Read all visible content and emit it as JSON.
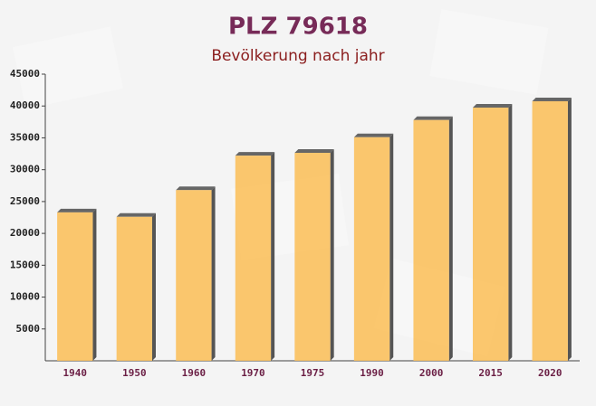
{
  "chart_data": {
    "type": "bar",
    "title": "PLZ 79618",
    "subtitle": "Bevölkerung nach jahr",
    "categories": [
      "1940",
      "1950",
      "1960",
      "1970",
      "1975",
      "1990",
      "2000",
      "2015",
      "2020"
    ],
    "values": [
      23300,
      22600,
      26800,
      32200,
      32650,
      35100,
      37800,
      39750,
      40750
    ],
    "color": "#fbc15e",
    "ylim": [
      0,
      45000
    ],
    "yticks": [
      5000,
      10000,
      15000,
      20000,
      25000,
      30000,
      35000,
      40000,
      45000
    ],
    "grid": false
  }
}
